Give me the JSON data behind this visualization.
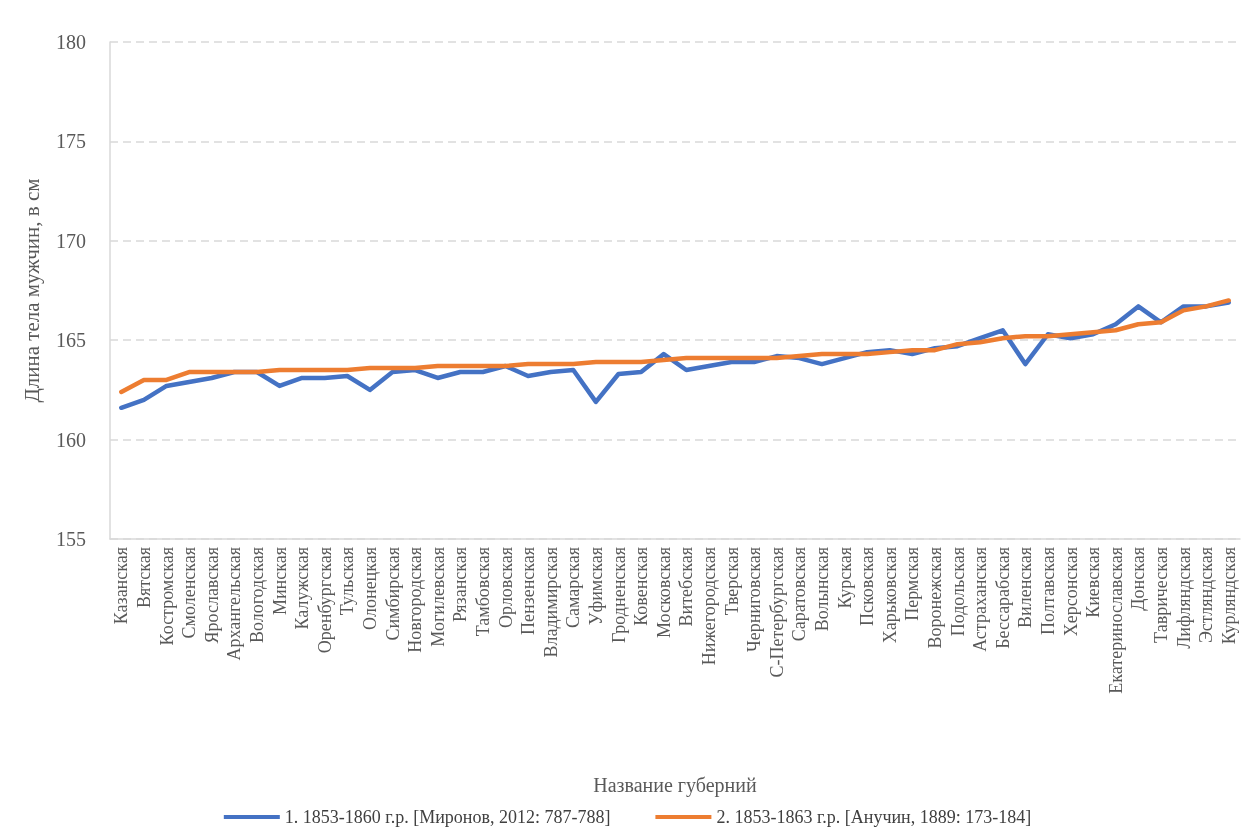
{
  "chart_data": {
    "type": "line",
    "xlabel": "Название губерний",
    "ylabel": "Длина тела мужчин, в см",
    "categories": [
      "Казанская",
      "Вятская",
      "Костромская",
      "Смоленская",
      "Ярославская",
      "Архангельская",
      "Вологодская",
      "Минская",
      "Калужская",
      "Оренбургская",
      "Тульская",
      "Олонецкая",
      "Симбирская",
      "Новгородская",
      "Могилевская",
      "Рязанская",
      "Тамбовская",
      "Орловская",
      "Пензенская",
      "Владимирская",
      "Самарская",
      "Уфимская",
      "Гродненская",
      "Ковенская",
      "Московская",
      "Витебская",
      "Нижегородская",
      "Тверская",
      "Черниговская",
      "С-Петербургская",
      "Саратовская",
      "Волынская",
      "Курская",
      "Псковская",
      "Харьковская",
      "Пермская",
      "Воронежская",
      "Подольская",
      "Астраханская",
      "Бессарабская",
      "Виленская",
      "Полтавская",
      "Херсонская",
      "Киевская",
      "Екатеринославская",
      "Донская",
      "Таврическая",
      "Лифляндская",
      "Эстляндская",
      "Курляндская"
    ],
    "series": [
      {
        "name": "1. 1853-1860 г.р. [Миронов, 2012: 787-788]",
        "color": "#4472c4",
        "values": [
          161.6,
          162.0,
          162.7,
          162.9,
          163.1,
          163.4,
          163.4,
          162.7,
          163.1,
          163.1,
          163.2,
          162.5,
          163.4,
          163.5,
          163.1,
          163.4,
          163.4,
          163.7,
          163.2,
          163.4,
          163.5,
          161.9,
          163.3,
          163.4,
          164.3,
          163.5,
          163.7,
          163.9,
          163.9,
          164.2,
          164.1,
          163.8,
          164.1,
          164.4,
          164.5,
          164.3,
          164.6,
          164.7,
          165.1,
          165.5,
          163.8,
          165.3,
          165.1,
          165.3,
          165.8,
          166.7,
          165.9,
          166.7,
          166.7,
          166.9
        ]
      },
      {
        "name": "2. 1853-1863 г.р. [Анучин, 1889: 173-184]",
        "color": "#ed7d31",
        "values": [
          162.4,
          163.0,
          163.0,
          163.4,
          163.4,
          163.4,
          163.4,
          163.5,
          163.5,
          163.5,
          163.5,
          163.6,
          163.6,
          163.6,
          163.7,
          163.7,
          163.7,
          163.7,
          163.8,
          163.8,
          163.8,
          163.9,
          163.9,
          163.9,
          164.0,
          164.1,
          164.1,
          164.1,
          164.1,
          164.1,
          164.2,
          164.3,
          164.3,
          164.3,
          164.4,
          164.5,
          164.5,
          164.8,
          164.9,
          165.1,
          165.2,
          165.2,
          165.3,
          165.4,
          165.5,
          165.8,
          165.9,
          166.5,
          166.7,
          167.0
        ]
      }
    ],
    "ylim": [
      155,
      180
    ],
    "yticks": [
      155,
      160,
      165,
      170,
      175,
      180
    ],
    "grid": "y",
    "legend": "bottom",
    "marker": "none",
    "line_style": "solid"
  }
}
